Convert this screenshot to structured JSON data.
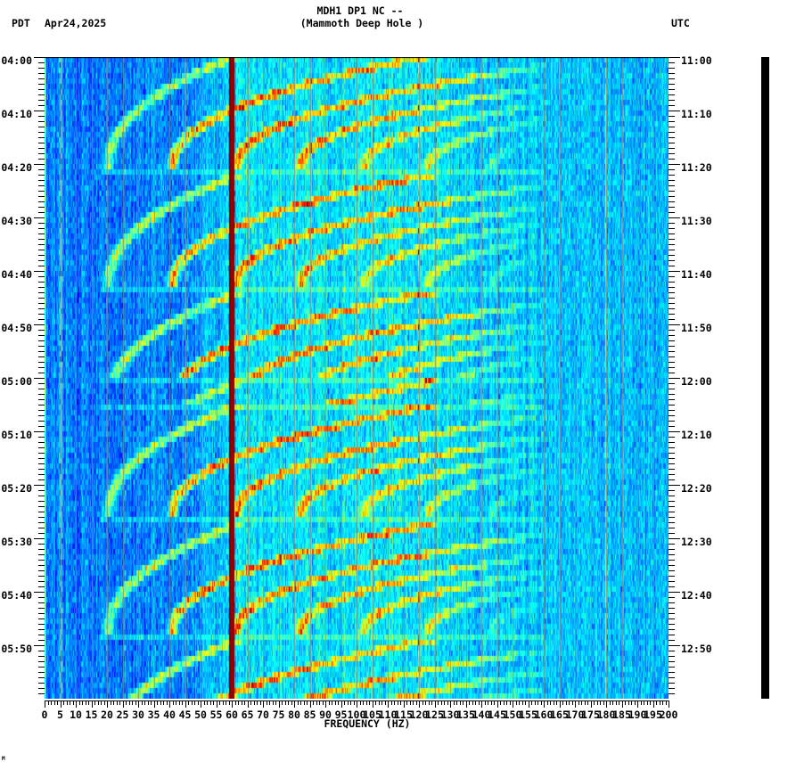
{
  "header": {
    "station_line": "MDH1 DP1 NC --",
    "site_name": "(Mammoth Deep Hole )",
    "left_timezone": "PDT",
    "date": "Apr24,2025",
    "right_timezone": "UTC"
  },
  "axes": {
    "left_labels": [
      "04:00",
      "04:10",
      "04:20",
      "04:30",
      "04:40",
      "04:50",
      "05:00",
      "05:10",
      "05:20",
      "05:30",
      "05:40",
      "05:50"
    ],
    "right_labels": [
      "11:00",
      "11:10",
      "11:20",
      "11:30",
      "11:40",
      "11:50",
      "12:00",
      "12:10",
      "12:20",
      "12:30",
      "12:40",
      "12:50"
    ],
    "x_labels": [
      "0",
      "5",
      "10",
      "15",
      "20",
      "25",
      "30",
      "35",
      "40",
      "45",
      "50",
      "55",
      "60",
      "65",
      "70",
      "75",
      "80",
      "85",
      "90",
      "95",
      "100",
      "105",
      "110",
      "115",
      "120",
      "125",
      "130",
      "135",
      "140",
      "145",
      "150",
      "155",
      "160",
      "165",
      "170",
      "175",
      "180",
      "185",
      "190",
      "195",
      "200"
    ],
    "x_title": "FREQUENCY (HZ)"
  },
  "corner_mark": "M",
  "colors": {
    "background": "#ffffff",
    "text": "#000000",
    "axis": "#000000",
    "gridline": "rgba(136,136,136,0.85)",
    "scale_bar": "#000000"
  },
  "chart_data": {
    "type": "heatmap",
    "subtype": "spectrogram",
    "title": "MDH1 DP1 NC -- (Mammoth Deep Hole )",
    "date": "Apr24,2025",
    "xlabel": "FREQUENCY (HZ)",
    "ylabel_left": "PDT",
    "ylabel_right": "UTC",
    "xlim": [
      0,
      200
    ],
    "x_tick_step_hz": 5,
    "x_minor_tick_step_hz": 1,
    "y_range_pdt": [
      "04:00",
      "06:00"
    ],
    "y_range_utc": [
      "11:00",
      "13:00"
    ],
    "y_tick_step_min": 10,
    "y_minor_tick_step_min": 1,
    "time_rows": 120,
    "minutes_per_row": 1,
    "colormap": "jet",
    "grid": {
      "x_every_hz": 5
    },
    "background_levels": [
      [
        0,
        0.25
      ],
      [
        20,
        0.235
      ],
      [
        45,
        0.26
      ],
      [
        56,
        0.31
      ],
      [
        62,
        0.35
      ],
      [
        115,
        0.36
      ],
      [
        140,
        0.32
      ],
      [
        200,
        0.31
      ]
    ],
    "persistent_lines": [
      {
        "freq_hz": 60,
        "half_width_hz": 0.86,
        "level": 1.0,
        "core_level": 0.965,
        "replace": true
      },
      {
        "freq_hz": 120,
        "half_width_hz": 0.3,
        "level": 0.42,
        "duty": 0.6
      },
      {
        "freq_hz": 180,
        "half_width_hz": 0.3,
        "level": 0.25,
        "duty": 0.8
      },
      {
        "freq_hz": 5.3,
        "half_width_hz": 0.35,
        "level": 0.2,
        "duty": 0.7
      }
    ],
    "sweep": {
      "description": "repeating downward frequency sweep with harmonics (fundamental ~62 Hz to ~20.5 Hz)",
      "start_hz": 62,
      "end_hz": 20.5,
      "exponent": 2.2,
      "harmonic_amplitudes": [
        0.32,
        0.5,
        0.48,
        0.42,
        0.36,
        0.3,
        0.24,
        0.18
      ],
      "line_sigma_hz": 1.0,
      "fade_start_hz": 125,
      "fade_width_hz": 40
    },
    "sweep_cycles": [
      {
        "start_min": -0.33,
        "end_min": 20.67,
        "cut_min": 20.67
      },
      {
        "start_min": 22,
        "end_min": 42.67,
        "cut_min": 42.67
      },
      {
        "start_min": 44,
        "end_min": 64.7,
        "cut_min": 59.67
      },
      {
        "start_min": 60.8,
        "end_min": 81.8,
        "cut_min": 65,
        "gain": 0.9
      },
      {
        "start_min": 65.17,
        "end_min": 85.67,
        "cut_min": 85.67
      },
      {
        "start_min": 87.33,
        "end_min": 107.67,
        "cut_min": 107.67
      },
      {
        "start_min": 109,
        "end_min": 129.7,
        "cut_min": 120
      }
    ],
    "noise": {
      "seed": 24042025,
      "cell_sd": 0.045,
      "column_sd": 0.03,
      "stripe_gain": 0.08
    }
  }
}
